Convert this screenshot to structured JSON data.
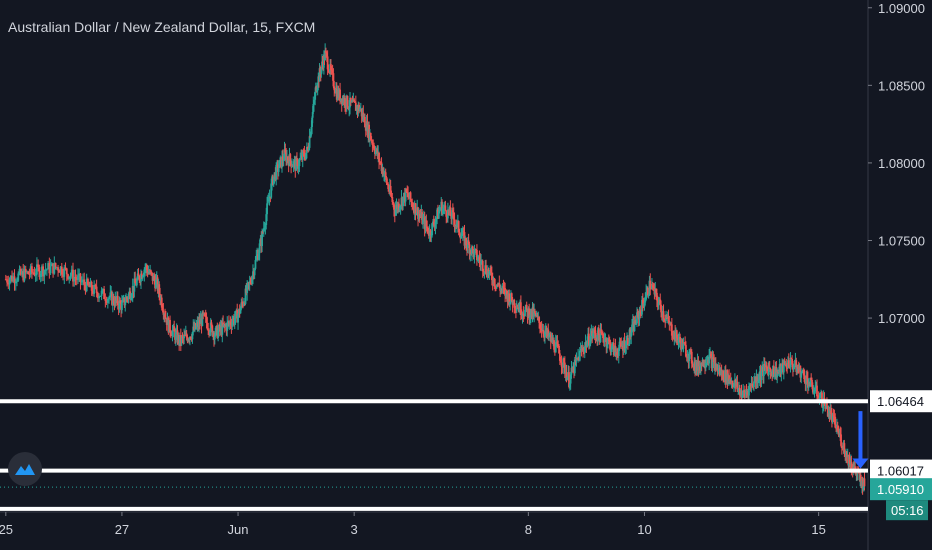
{
  "header": {
    "title": "Australian Dollar / New Zealand Dollar, 15, FXCM"
  },
  "colors": {
    "background": "#131722",
    "up_candle": "#26a69a",
    "down_candle": "#ef5350",
    "axis_text": "#d1d4dc",
    "level_line": "#ffffff",
    "current_price": "#26a69a",
    "arrow": "#2962ff"
  },
  "chart_data": {
    "type": "line",
    "ylim": [
      1.0575,
      1.0905
    ],
    "y_ticks": [
      "1.09000",
      "1.08500",
      "1.08000",
      "1.07500",
      "1.07000"
    ],
    "y_tick_values": [
      1.09,
      1.085,
      1.08,
      1.075,
      1.07
    ],
    "x_ticks": [
      "25",
      "27",
      "Jun",
      "3",
      "8",
      "10",
      "15"
    ],
    "x_tick_values": [
      0,
      2,
      4,
      6,
      9,
      11,
      14
    ],
    "xlim": [
      -0.1,
      14.85
    ],
    "series": [
      {
        "x": [
          0,
          0.3,
          0.6,
          0.9,
          1.2,
          1.5,
          1.8,
          2.0,
          2.2,
          2.4,
          2.6,
          2.8,
          3.0,
          3.2,
          3.4,
          3.6,
          3.8,
          4.0,
          4.2,
          4.4,
          4.6,
          4.8,
          5.0,
          5.2,
          5.35,
          5.5,
          5.7,
          5.9,
          6.1,
          6.3,
          6.5,
          6.7,
          6.9,
          7.1,
          7.3,
          7.5,
          7.7,
          7.9,
          8.1,
          8.3,
          8.5,
          8.7,
          8.9,
          9.1,
          9.3,
          9.5,
          9.7,
          9.9,
          10.1,
          10.3,
          10.5,
          10.7,
          10.9,
          11.1,
          11.3,
          11.5,
          11.7,
          11.9,
          12.1,
          12.3,
          12.5,
          12.7,
          12.9,
          13.1,
          13.3,
          13.5,
          13.7,
          13.9,
          14.1,
          14.3,
          14.5,
          14.65,
          14.8
        ],
        "y": [
          1.0725,
          1.0728,
          1.0731,
          1.0733,
          1.0726,
          1.0718,
          1.0713,
          1.0708,
          1.072,
          1.0733,
          1.0722,
          1.0695,
          1.0685,
          1.069,
          1.07,
          1.069,
          1.0695,
          1.0702,
          1.0722,
          1.075,
          1.079,
          1.0805,
          1.0798,
          1.0808,
          1.085,
          1.087,
          1.0845,
          1.0838,
          1.0835,
          1.0815,
          1.0795,
          1.077,
          1.078,
          1.0768,
          1.0755,
          1.0772,
          1.0765,
          1.075,
          1.074,
          1.073,
          1.072,
          1.0712,
          1.0705,
          1.0702,
          1.069,
          1.068,
          1.066,
          1.0678,
          1.069,
          1.0688,
          1.0678,
          1.0685,
          1.0702,
          1.0722,
          1.0705,
          1.069,
          1.068,
          1.0668,
          1.0675,
          1.0665,
          1.066,
          1.065,
          1.066,
          1.0668,
          1.0665,
          1.0672,
          1.0665,
          1.0655,
          1.0645,
          1.063,
          1.061,
          1.06,
          1.0591
        ]
      }
    ],
    "levels": [
      {
        "value": 1.06464,
        "label": "1.06464"
      },
      {
        "value": 1.06017,
        "label": "1.06017"
      },
      {
        "value": 1.0577,
        "label": ""
      }
    ],
    "current_price": {
      "value": 1.0591,
      "label": "1.05910",
      "countdown": "05:16"
    },
    "legend": "none",
    "grid": false
  }
}
